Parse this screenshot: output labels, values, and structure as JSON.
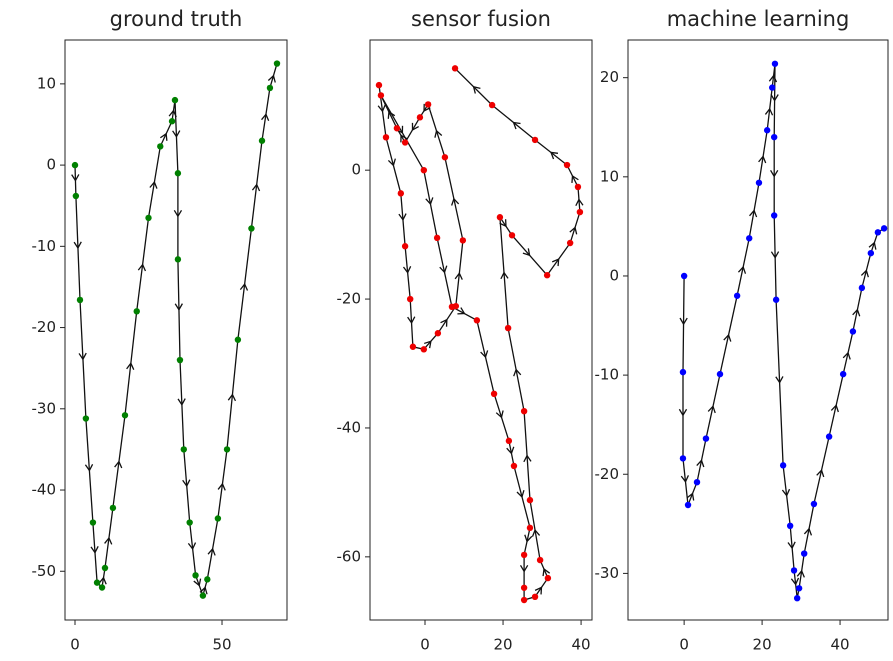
{
  "chart_data": [
    {
      "type": "line",
      "title": "ground truth",
      "color": "#008000",
      "x": [
        0,
        0.3,
        1.7,
        3.7,
        6.1,
        7.5,
        9.2,
        10.2,
        12.9,
        17,
        21,
        25,
        29,
        33,
        34,
        35,
        35,
        35.7,
        37,
        39,
        41,
        43.5,
        45,
        48.6,
        51.7,
        55.4,
        60,
        63.6,
        66.3,
        68.7
      ],
      "values": [
        0,
        -3.8,
        -16.6,
        -31.2,
        -44,
        -51.4,
        -52,
        -49.6,
        -42.2,
        -30.8,
        -18,
        -6.5,
        2.3,
        5.4,
        8,
        -1,
        -11.6,
        -24,
        -35,
        -44,
        -50.5,
        -53,
        -51,
        -43.5,
        -35,
        -21.5,
        -7.8,
        3,
        9.5,
        12.5
      ],
      "xlim": [
        -3.4,
        72.1
      ],
      "ylim": [
        -56,
        15.4
      ],
      "xticks": [
        0,
        50
      ],
      "yticks": [
        -50,
        -40,
        -30,
        -20,
        -10,
        0,
        10
      ]
    },
    {
      "type": "line",
      "title": "sensor fusion",
      "color": "#ee0000",
      "x": [
        -11.8,
        -10,
        -6.2,
        -5.1,
        -3.8,
        -3.1,
        -0.3,
        3.3,
        7.9,
        9.7,
        5.1,
        0.8,
        -1.3,
        -5.1,
        -7.2,
        -11.3,
        -0.3,
        3.1,
        6.9,
        13.3,
        17.7,
        21.5,
        22.8,
        26.9,
        25.4,
        25.4,
        25.4,
        28.2,
        31.5,
        29.5,
        26.9,
        25.4,
        21.3,
        19.2,
        22.3,
        31.3,
        37.2,
        39.7,
        39.2,
        36.4,
        28.2,
        17.2,
        7.7
      ],
      "values": [
        13.2,
        5.1,
        -3.6,
        -11.8,
        -20,
        -27.4,
        -27.8,
        -25.3,
        -21.1,
        -10.9,
        2,
        10.2,
        8.2,
        4.3,
        6.5,
        11.6,
        0,
        -10.5,
        -21.2,
        -23.3,
        -34.7,
        -42,
        -45.9,
        -55.5,
        -59.7,
        -64.8,
        -66.7,
        -66.2,
        -63.3,
        -60.5,
        -51.2,
        -37.4,
        -24.5,
        -7.3,
        -10.1,
        -16.3,
        -11.3,
        -6.5,
        -2.6,
        0.8,
        4.7,
        10.1,
        15.8
      ],
      "xlim": [
        -14.1,
        42.8
      ],
      "ylim": [
        -69.8,
        20.2
      ],
      "xticks": [
        0,
        20,
        40
      ],
      "yticks": [
        -60,
        -40,
        -20,
        0
      ]
    },
    {
      "type": "line",
      "title": "machine learning",
      "color": "#0000ff",
      "x": [
        0,
        -0.3,
        -0.3,
        1,
        3.3,
        5.6,
        9.2,
        13.6,
        16.7,
        19.2,
        21.3,
        22.6,
        23.3,
        23.1,
        23.1,
        23.6,
        25.4,
        27.2,
        28.2,
        29,
        29.5,
        30.8,
        33.3,
        37.2,
        40.8,
        43.3,
        45.6,
        47.9,
        49.7,
        51.3
      ],
      "values": [
        0,
        -9.7,
        -18.4,
        -23.1,
        -20.8,
        -16.4,
        -9.9,
        -2,
        3.8,
        9.4,
        14.7,
        19,
        21.4,
        14,
        6.1,
        -2.4,
        -19.1,
        -25.2,
        -29.7,
        -32.5,
        -31.5,
        -28,
        -23,
        -16.2,
        -9.9,
        -5.6,
        -1.2,
        2.3,
        4.4,
        4.8
      ],
      "xlim": [
        -14.4,
        52.3
      ],
      "ylim": [
        -34.7,
        23.8
      ],
      "xticks": [
        0,
        20,
        40
      ],
      "yticks": [
        -30,
        -20,
        -10,
        0,
        10,
        20
      ]
    }
  ]
}
